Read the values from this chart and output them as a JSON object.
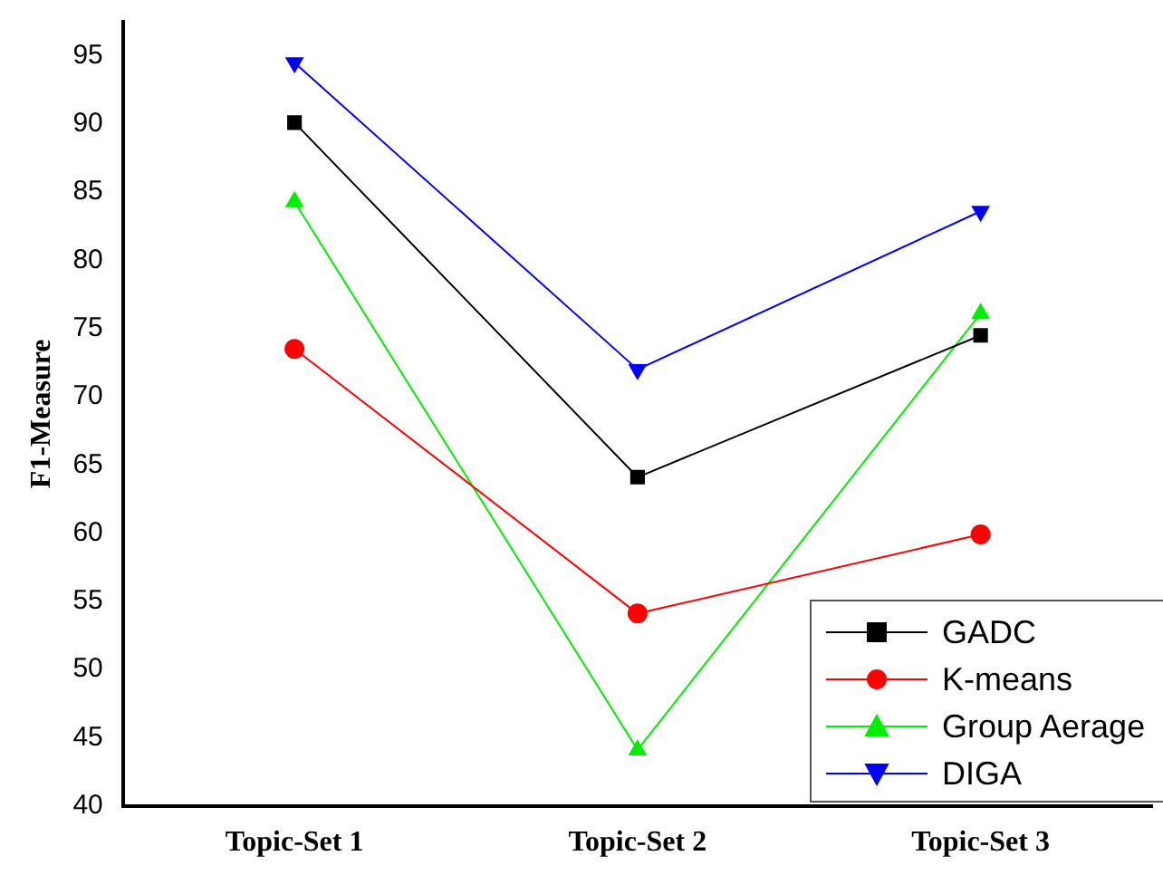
{
  "chart_data": {
    "type": "line",
    "ylabel": "F1-Measure",
    "categories": [
      "Topic-Set 1",
      "Topic-Set 2",
      "Topic-Set 3"
    ],
    "series": [
      {
        "name": "GADC",
        "color": "#000000",
        "marker": "square",
        "values": [
          90.1,
          64.1,
          74.5
        ]
      },
      {
        "name": "K-means",
        "color": "#ff0000",
        "marker": "circle",
        "values": [
          73.5,
          54.1,
          59.9
        ]
      },
      {
        "name": "Group Aerage",
        "color": "#00ee00",
        "marker": "triangle",
        "values": [
          84.3,
          44.1,
          76.1
        ]
      },
      {
        "name": "DIGA",
        "color": "#0000ff",
        "marker": "triangle-down",
        "values": [
          94.5,
          72,
          83.6
        ]
      }
    ],
    "ylim": [
      40,
      97.5
    ],
    "yticks": [
      40,
      45,
      50,
      55,
      60,
      65,
      70,
      75,
      80,
      85,
      90,
      95
    ],
    "grid": false,
    "legend": "bottom right",
    "line_style": "solid"
  }
}
